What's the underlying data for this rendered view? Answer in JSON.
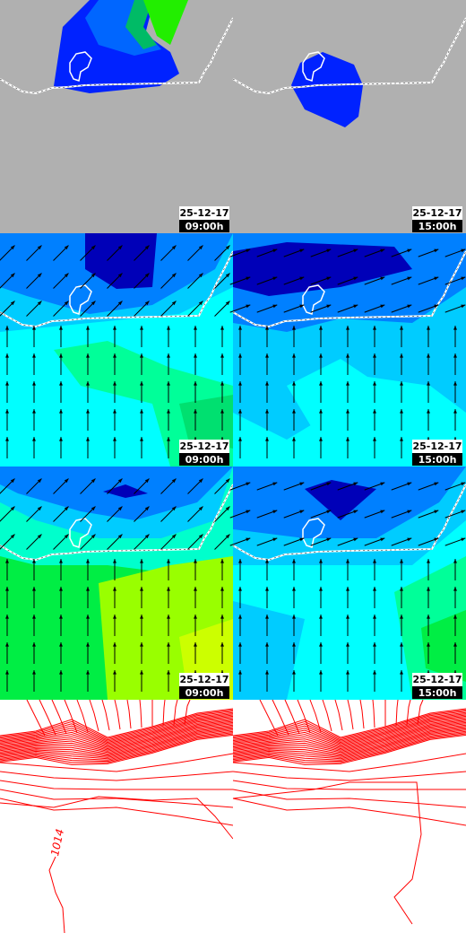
{
  "rows": [
    {
      "panels": [
        {
          "date": "25-12-17",
          "time": "09:00h"
        },
        {
          "date": "25-12-17",
          "time": "15:00h"
        }
      ]
    },
    {
      "panels": [
        {
          "date": "25-12-17",
          "time": "09:00h"
        },
        {
          "date": "25-12-17",
          "time": "15:00h"
        }
      ]
    },
    {
      "panels": [
        {
          "date": "25-12-17",
          "time": "09:00h"
        },
        {
          "date": "25-12-17",
          "time": "15:00h"
        }
      ]
    }
  ],
  "pressure": {
    "isobar_label": "1014"
  }
}
